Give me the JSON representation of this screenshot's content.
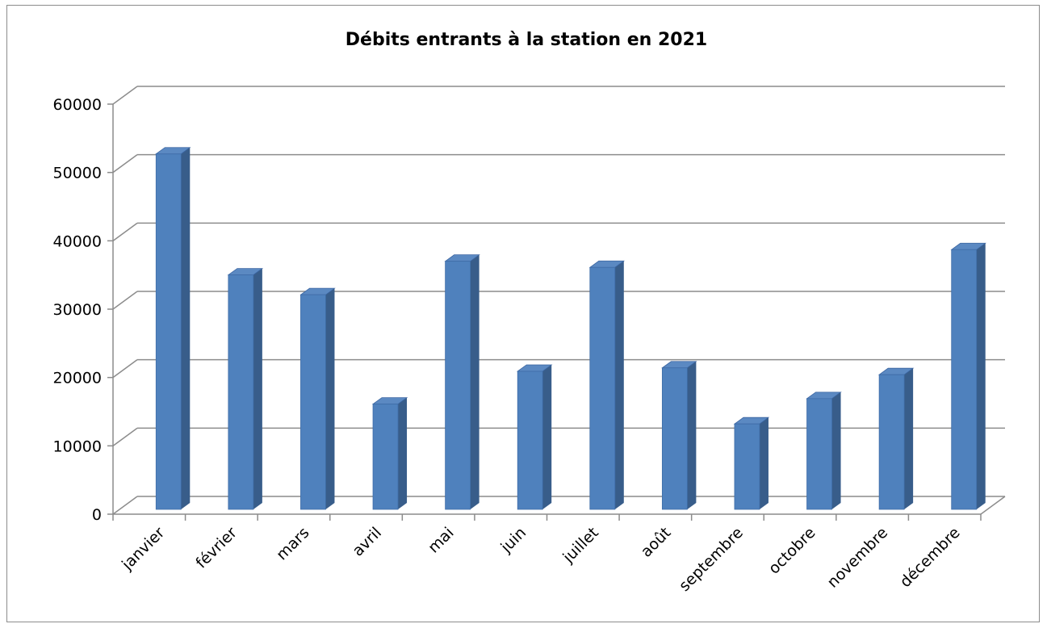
{
  "chart_data": {
    "type": "bar",
    "title": "Débits entrants à la station en 2021",
    "xlabel": "",
    "ylabel": "",
    "categories": [
      "janvier",
      "février",
      "mars",
      "avril",
      "mai",
      "juin",
      "juillet",
      "août",
      "septembre",
      "octobre",
      "novembre",
      "décembre"
    ],
    "values": [
      52000,
      34300,
      31400,
      15400,
      36300,
      20200,
      35400,
      20700,
      12500,
      16200,
      19700,
      38000
    ],
    "ylim": [
      0,
      60000
    ],
    "yticks": [
      "0",
      "10000",
      "20000",
      "30000",
      "40000",
      "50000",
      "60000"
    ],
    "grid": true,
    "legend": "none",
    "style": "3d-column",
    "colors": {
      "bar_front": "#4f81bd",
      "bar_side": "#385d8a",
      "bar_top": "#5b89c2",
      "grid": "#8c8c8c"
    }
  }
}
